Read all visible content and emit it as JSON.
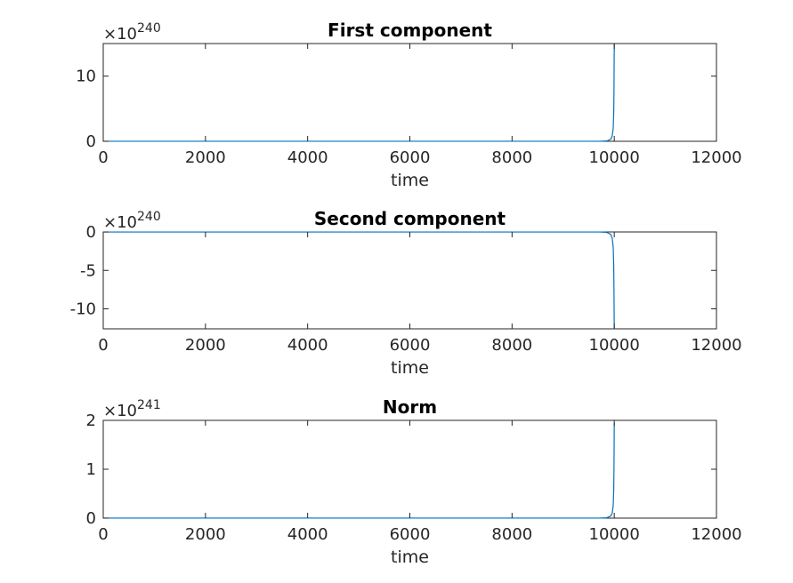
{
  "chart_data": [
    {
      "type": "line",
      "title": "First component",
      "xlabel": "time",
      "ylabel": "",
      "exponent_multiplier": "×10",
      "exponent_power": "240",
      "xlim": [
        0,
        12000
      ],
      "ylim": [
        0,
        15
      ],
      "xticks": [
        0,
        2000,
        4000,
        6000,
        8000,
        10000,
        12000
      ],
      "xtick_labels": [
        "0",
        "2000",
        "4000",
        "6000",
        "8000",
        "10000",
        "12000"
      ],
      "yticks": [
        0,
        10
      ],
      "ytick_labels": [
        "0",
        "10"
      ],
      "series": [
        {
          "color": "#0072BD",
          "x": [
            0,
            9700,
            9850,
            9930,
            9960,
            9980,
            9990,
            9995,
            10000
          ],
          "y": [
            0,
            0,
            0.05,
            0.3,
            0.8,
            2.0,
            4.5,
            8.0,
            15
          ]
        }
      ]
    },
    {
      "type": "line",
      "title": "Second component",
      "xlabel": "time",
      "ylabel": "",
      "exponent_multiplier": "×10",
      "exponent_power": "240",
      "xlim": [
        0,
        12000
      ],
      "ylim": [
        -12.6,
        0
      ],
      "xticks": [
        0,
        2000,
        4000,
        6000,
        8000,
        10000,
        12000
      ],
      "xtick_labels": [
        "0",
        "2000",
        "4000",
        "6000",
        "8000",
        "10000",
        "12000"
      ],
      "yticks": [
        -10,
        -5,
        0
      ],
      "ytick_labels": [
        "-10",
        "-5",
        "0"
      ],
      "series": [
        {
          "color": "#0072BD",
          "x": [
            0,
            9700,
            9850,
            9930,
            9960,
            9980,
            9990,
            9995,
            10000
          ],
          "y": [
            0,
            0,
            -0.05,
            -0.3,
            -0.8,
            -2.0,
            -4.5,
            -8.0,
            -12.6
          ]
        }
      ]
    },
    {
      "type": "line",
      "title": "Norm",
      "xlabel": "time",
      "ylabel": "",
      "exponent_multiplier": "×10",
      "exponent_power": "241",
      "xlim": [
        0,
        12000
      ],
      "ylim": [
        0,
        2
      ],
      "xticks": [
        0,
        2000,
        4000,
        6000,
        8000,
        10000,
        12000
      ],
      "xtick_labels": [
        "0",
        "2000",
        "4000",
        "6000",
        "8000",
        "10000",
        "12000"
      ],
      "yticks": [
        0,
        1,
        2
      ],
      "ytick_labels": [
        "0",
        "1",
        "2"
      ],
      "series": [
        {
          "color": "#0072BD",
          "x": [
            0,
            9700,
            9850,
            9930,
            9960,
            9980,
            9990,
            9995,
            10000
          ],
          "y": [
            0,
            0,
            0.007,
            0.04,
            0.1,
            0.26,
            0.6,
            1.05,
            1.95
          ]
        }
      ]
    }
  ]
}
